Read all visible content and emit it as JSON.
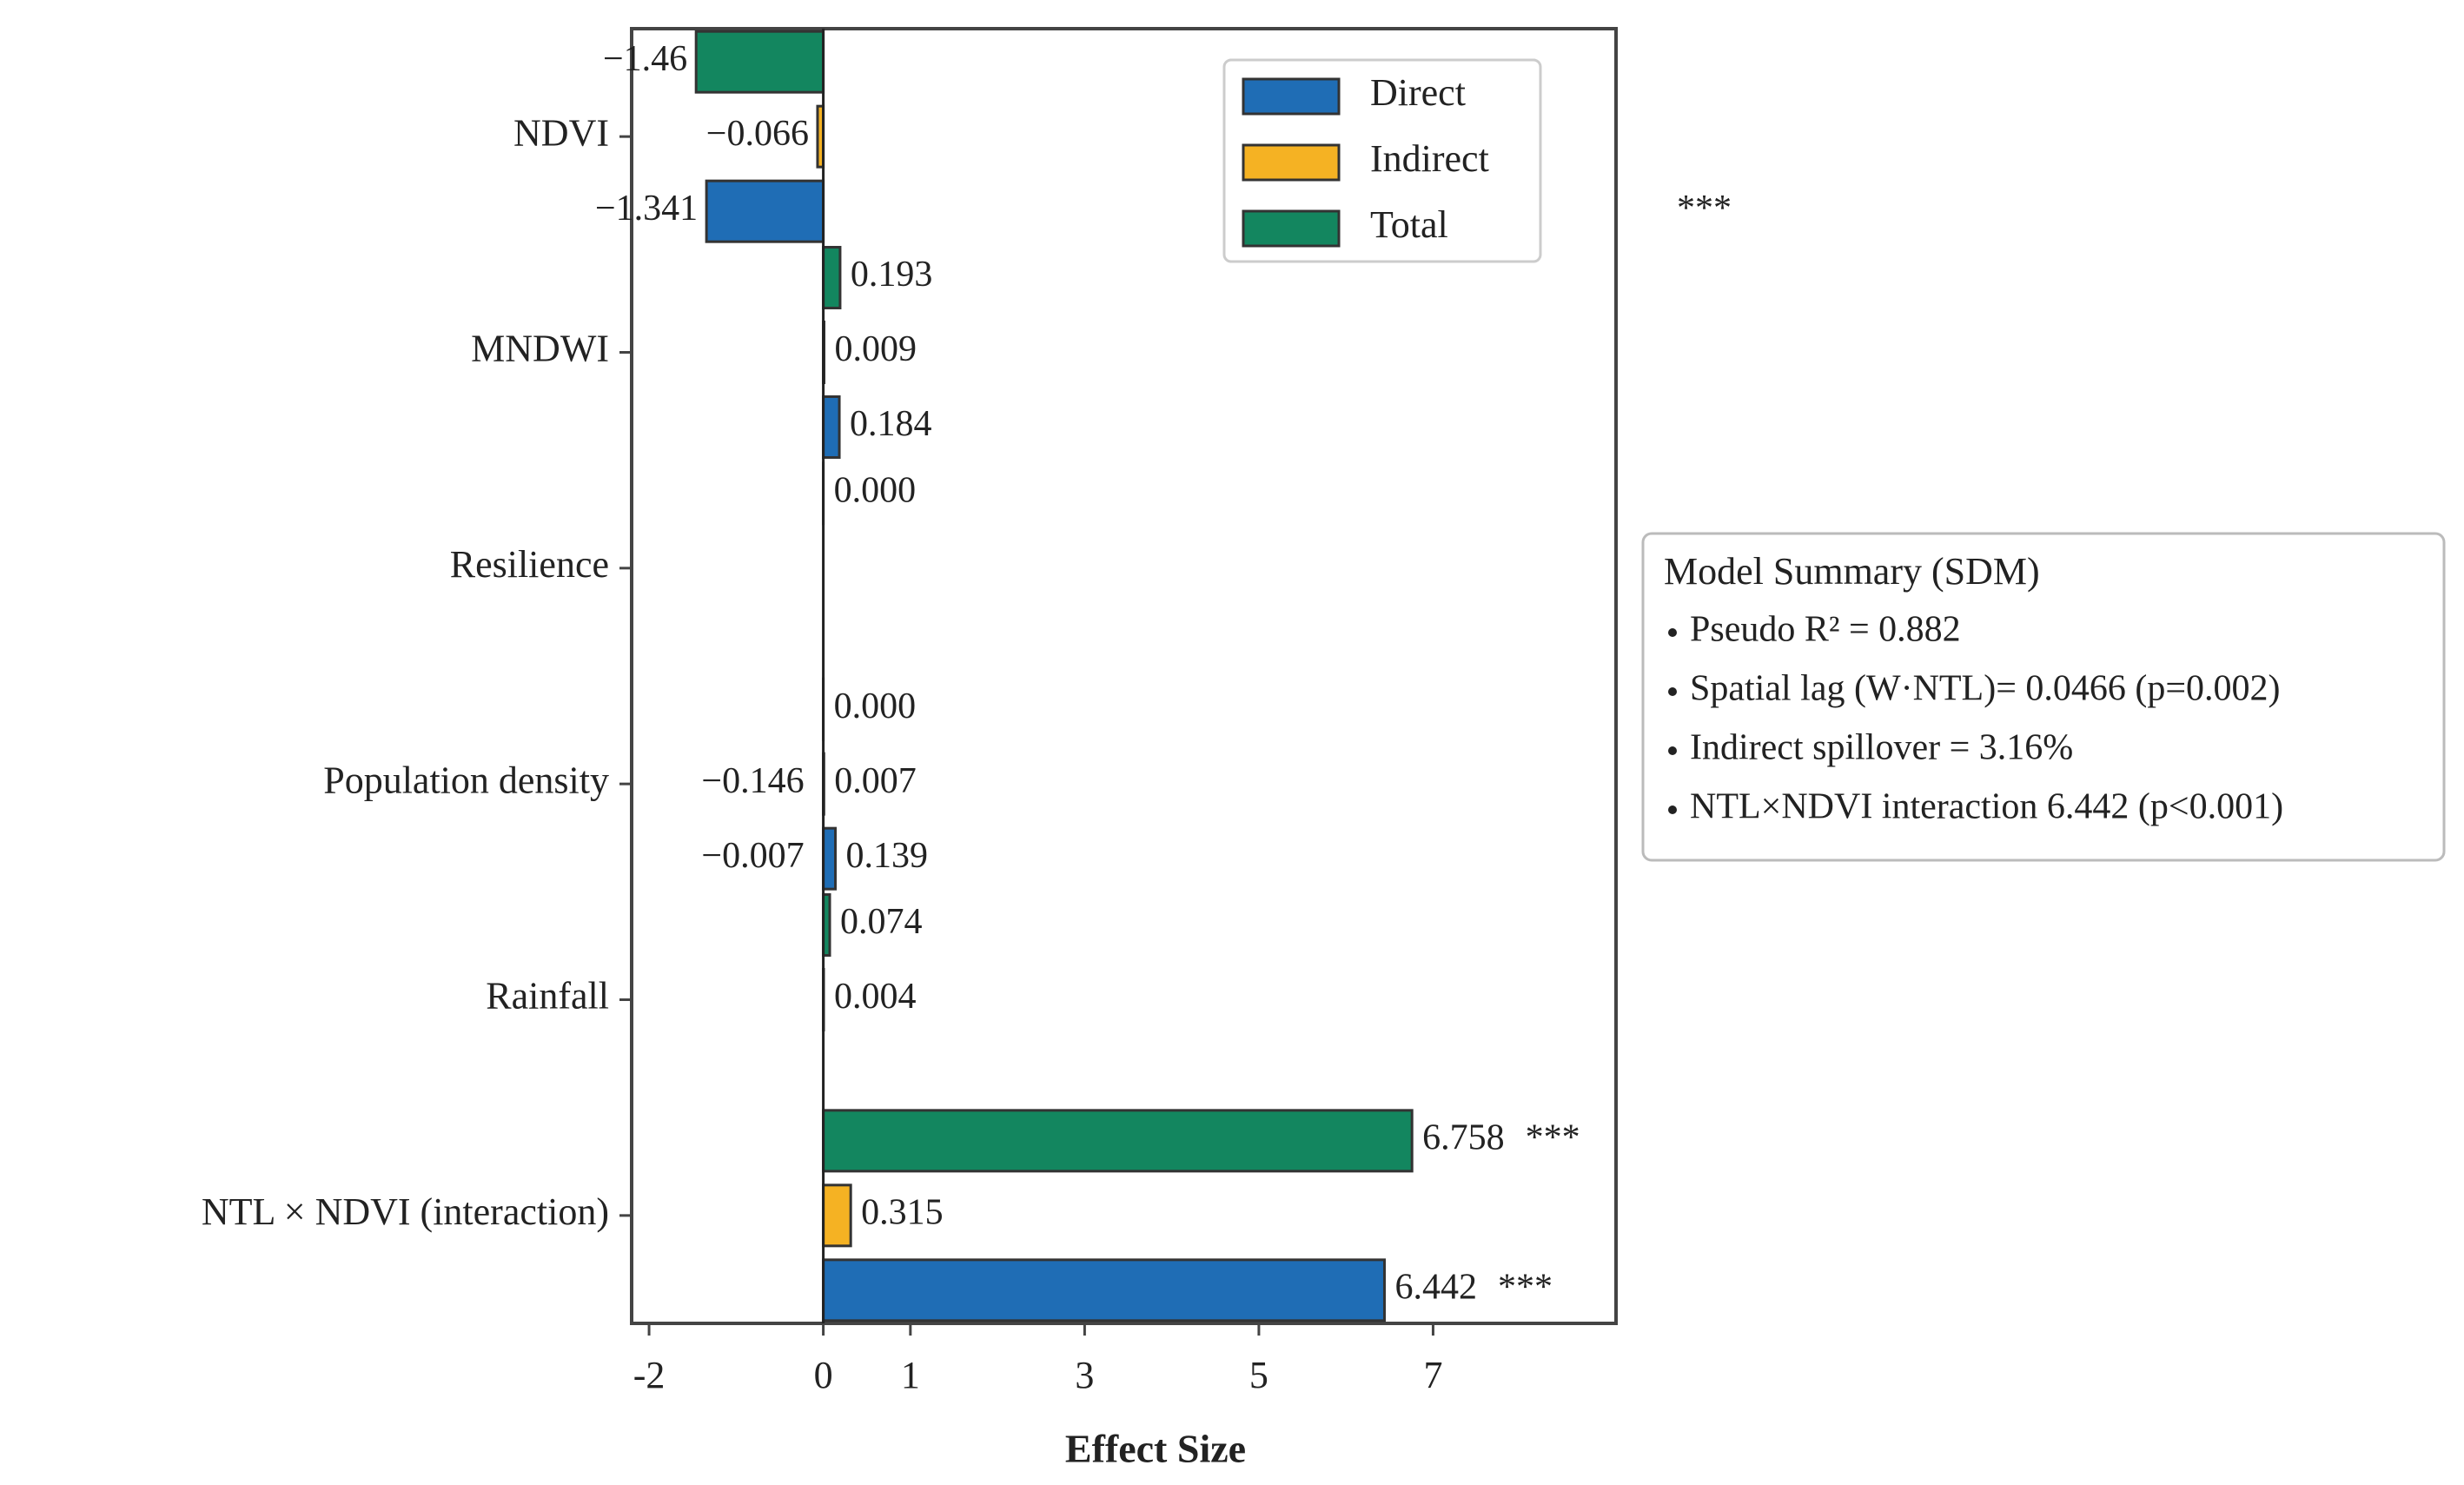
{
  "chart_data": {
    "type": "hbar",
    "xlabel": "Effect Size",
    "categories": [
      "NDVI",
      "MNDWI",
      "Resilience",
      "Population density",
      "Rainfall",
      "NTL × NDVI (interaction)"
    ],
    "series": [
      {
        "name": "Direct",
        "color": "#1f6db5",
        "values": [
          -1.341,
          0.184,
          null,
          0.139,
          null,
          6.442
        ],
        "value_labels": [
          "−1.341",
          "0.184",
          null,
          "0.139",
          null,
          "6.442"
        ],
        "side_labels": [
          null,
          null,
          null,
          "−0.007",
          null,
          null
        ],
        "significance": [
          "***",
          null,
          null,
          null,
          null,
          "***"
        ]
      },
      {
        "name": "Indirect",
        "color": "#f5b223",
        "values": [
          -0.066,
          0.009,
          null,
          0.007,
          0.004,
          0.315
        ],
        "value_labels": [
          "−0.066",
          "0.009",
          null,
          "0.007",
          "0.004",
          "0.315"
        ],
        "side_labels": [
          null,
          null,
          null,
          "−0.146",
          null,
          null
        ],
        "significance": [
          null,
          null,
          null,
          null,
          null,
          null
        ]
      },
      {
        "name": "Total",
        "color": "#13865f",
        "values": [
          -1.46,
          0.193,
          0,
          0,
          0.074,
          6.758
        ],
        "value_labels": [
          "−1.46",
          "0.193",
          "0.000",
          "0.000",
          "0.074",
          "6.758"
        ],
        "side_labels": [
          null,
          null,
          null,
          null,
          null,
          null
        ],
        "significance": [
          null,
          null,
          null,
          null,
          null,
          "***"
        ]
      }
    ],
    "xlim": [
      -2.2,
      9.1
    ],
    "xticks": [
      -2,
      0,
      1,
      3,
      5,
      7
    ],
    "legend": "upper right",
    "summary": {
      "title": "Model Summary (SDM)",
      "lines": [
        "Pseudo R² = 0.882",
        "Spatial lag (W·NTL)= 0.0466 (p=0.002)",
        "Indirect spillover = 3.16%",
        "NTL×NDVI interaction  6.442 (p<0.001)"
      ]
    }
  }
}
